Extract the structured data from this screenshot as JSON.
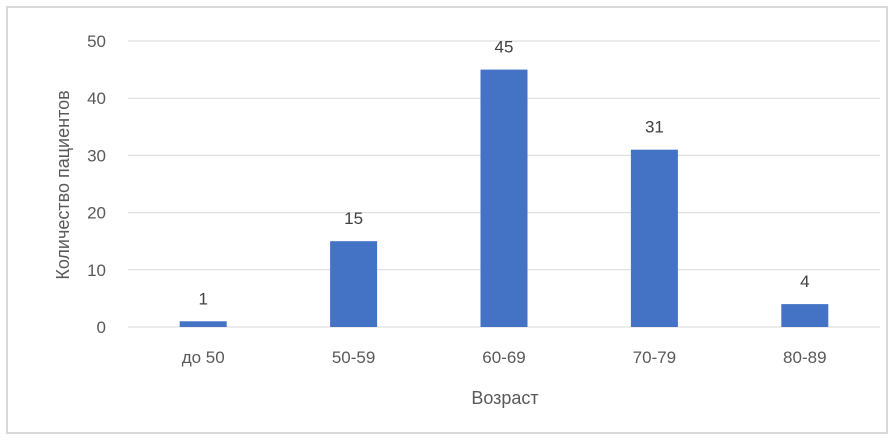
{
  "chart_data": {
    "type": "bar",
    "categories": [
      "до 50",
      "50-59",
      "60-69",
      "70-79",
      "80-89"
    ],
    "values": [
      1,
      15,
      45,
      31,
      4
    ],
    "title": "",
    "xlabel": "Возраст",
    "ylabel": "Количество пациентов",
    "ylim": [
      0,
      50
    ],
    "yticks": [
      0,
      10,
      20,
      30,
      40,
      50
    ],
    "grid": true,
    "data_labels": true,
    "bar_color": "#4472c4",
    "grid_color": "#d9d9d9"
  }
}
